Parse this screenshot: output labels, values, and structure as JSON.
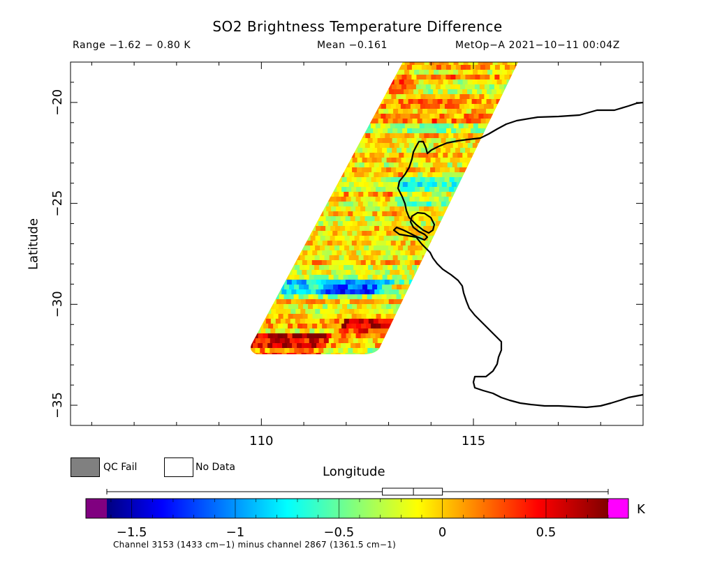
{
  "header": {
    "title": "SO2 Brightness Temperature Difference",
    "range": "Range −1.62 − 0.80 K",
    "mean": "Mean −0.161",
    "satellite": "MetOp−A 2021−10−11 00:04Z"
  },
  "map": {
    "xlabel": "Longitude",
    "ylabel": "Latitude",
    "x_ticks": [
      "110",
      "115"
    ],
    "y_ticks": [
      "−20",
      "−25",
      "−30",
      "−35"
    ],
    "lon_range": [
      105.5,
      119.0
    ],
    "lat_range": [
      -18.0,
      -36.0
    ]
  },
  "legend": {
    "qc_fail": "QC Fail",
    "no_data": "No Data",
    "qc_fail_color": "#808080",
    "no_data_color": "#ffffff"
  },
  "colorbar": {
    "unit": "K",
    "ticks": [
      "−1.5",
      "−1",
      "−0.5",
      "0",
      "0.5"
    ],
    "tick_values": [
      -1.5,
      -1.0,
      -0.5,
      0.0,
      0.5
    ],
    "range": [
      -1.62,
      0.8
    ],
    "underflow_color": "#800080",
    "overflow_color": "#ff00ff",
    "caption": "Channel 3153 (1433 cm−1) minus channel 2867 (1361.5 cm−1)"
  },
  "boxplot": {
    "min": -1.62,
    "q1": -0.29,
    "median": -0.14,
    "q3": 0.0,
    "max": 0.8
  }
}
